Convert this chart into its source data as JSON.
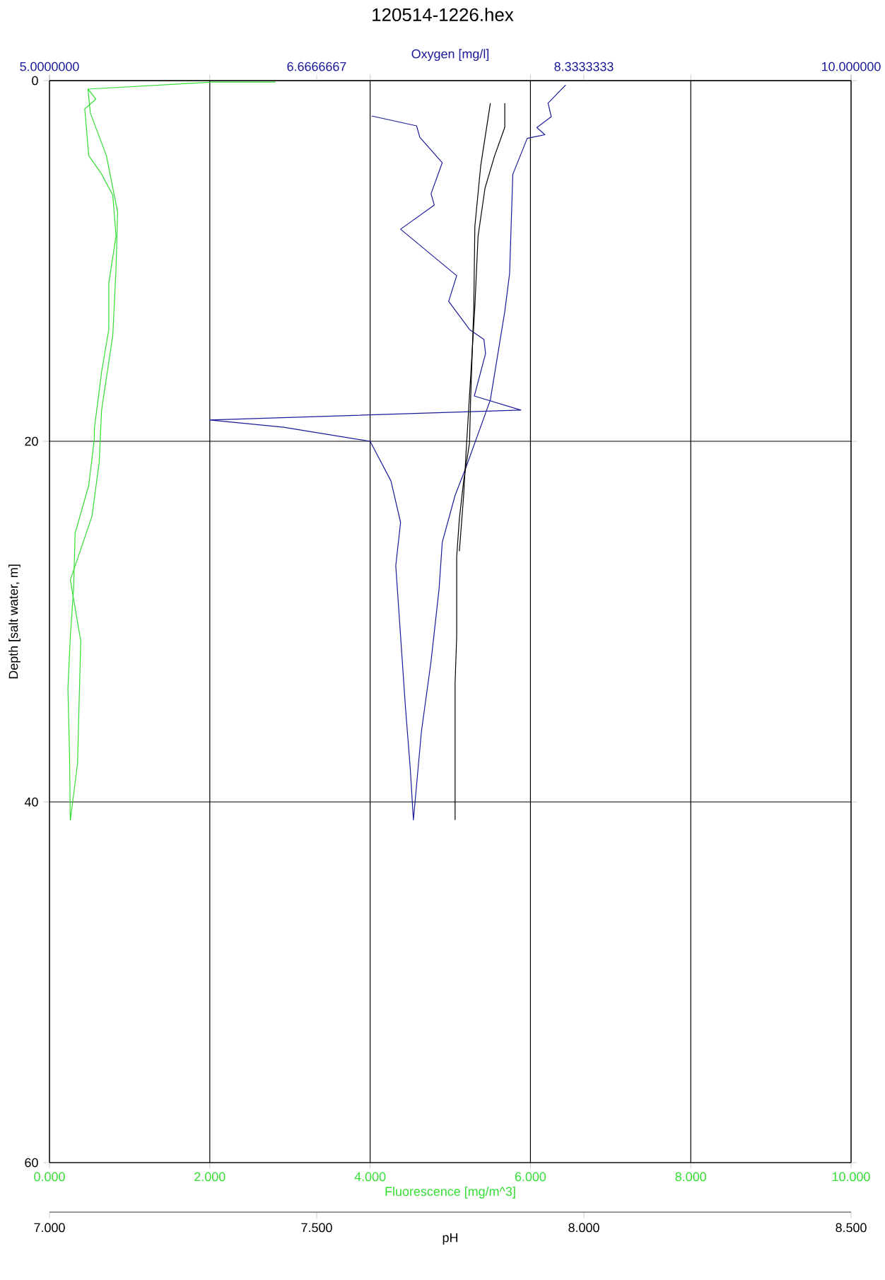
{
  "chart_data": [
    {
      "type": "line",
      "title": "120514-1226.hex",
      "xlabel": "Fluorescence [mg/m^3]",
      "x2label": "Oxygen [mg/l]",
      "ylabel": "Depth [salt water, m]",
      "xlim": [
        0,
        10
      ],
      "xticks": [
        {
          "value": 0,
          "label": "0.000"
        },
        {
          "value": 2,
          "label": "2.000"
        },
        {
          "value": 4,
          "label": "4.000"
        },
        {
          "value": 6,
          "label": "6.000"
        },
        {
          "value": 8,
          "label": "8.000"
        },
        {
          "value": 10,
          "label": "10.000"
        }
      ],
      "x2lim": [
        5,
        10
      ],
      "x2ticks": [
        {
          "value": 5,
          "label": "5.0000000"
        },
        {
          "value": 6.6666667,
          "label": "6.6666667"
        },
        {
          "value": 8.3333333,
          "label": "8.3333333"
        },
        {
          "value": 10,
          "label": "10.000000"
        }
      ],
      "ylim": [
        60,
        0
      ],
      "yticks": [
        0,
        20,
        40,
        60
      ],
      "grid": true,
      "series": [
        {
          "color": "#33dd33",
          "x": [
            0.48,
            0.58,
            0.44,
            0.49,
            0.65,
            0.79,
            0.83,
            0.74,
            0.74,
            0.65,
            0.56,
            0.56,
            0.49,
            0.32,
            0.3,
            0.26,
            0.23,
            0.25,
            0.26
          ],
          "values": [
            0.47,
            1.02,
            1.57,
            4.16,
            5.18,
            6.35,
            8.63,
            11.22,
            13.8,
            16.16,
            19.29,
            19.84,
            22.43,
            25.1,
            28.24,
            30.82,
            33.73,
            37.33,
            41.02
          ]
        },
        {
          "color": "#33dd33",
          "x": [
            0.26,
            0.35,
            0.39,
            0.26,
            0.41,
            0.53,
            0.62,
            0.65,
            0.79,
            0.83,
            0.85,
            0.71,
            0.51,
            0.48,
            2.03,
            2.82
          ],
          "values": [
            41.02,
            37.88,
            31.06,
            27.69,
            25.73,
            24.16,
            21.18,
            18.27,
            14.12,
            10.43,
            7.29,
            4.16,
            1.8,
            0.47,
            0.08,
            0.08
          ]
        },
        {
          "color": "#1a1a9a",
          "axis": "x2",
          "x": [
            7.01,
            7.29,
            7.31,
            7.45,
            7.38,
            7.4,
            7.19,
            7.54,
            7.49,
            7.62,
            7.71,
            7.72,
            7.65,
            7.94,
            6.0,
            6.46,
            7.0,
            7.13,
            7.19,
            7.16,
            7.19,
            7.22,
            7.25,
            7.27,
            7.32,
            7.38,
            7.43,
            7.45,
            7.53,
            7.6,
            7.75,
            7.84,
            7.87,
            7.89,
            7.98,
            8.09,
            8.04,
            8.13,
            8.11,
            8.22
          ],
          "values": [
            1.96,
            2.51,
            3.14,
            4.55,
            6.27,
            6.9,
            8.24,
            10.82,
            12.24,
            13.8,
            14.35,
            15.14,
            17.49,
            18.27,
            18.82,
            19.22,
            20.0,
            22.2,
            24.5,
            26.9,
            30.8,
            34.7,
            38.1,
            41.0,
            36.1,
            32.2,
            28.2,
            25.6,
            23.0,
            21.4,
            17.7,
            12.8,
            10.7,
            5.2,
            3.2,
            3.0,
            2.6,
            2.0,
            1.25,
            0.24
          ]
        }
      ]
    },
    {
      "type": "line",
      "xlabel": "pH",
      "xlim": [
        7,
        8.5
      ],
      "xticks": [
        {
          "value": 7,
          "label": "7.000"
        },
        {
          "value": 7.5,
          "label": "7.500"
        },
        {
          "value": 8,
          "label": "8.000"
        },
        {
          "value": 8.5,
          "label": "8.500"
        }
      ],
      "ylim": [
        60,
        0
      ],
      "tick_labels": "x",
      "series": [
        {
          "color": "#000000",
          "x": [
            7.825,
            7.807,
            7.796,
            7.794,
            7.788,
            7.786,
            7.775,
            7.767,
            7.762,
            7.762,
            7.759,
            7.759
          ],
          "values": [
            1.25,
            4.71,
            8.08,
            12.55,
            17.73,
            20.08,
            22.2,
            24.3,
            26.4,
            30.8,
            33.4,
            41.0
          ]
        },
        {
          "color": "#000000",
          "x": [
            7.852,
            7.852,
            7.833,
            7.815,
            7.802,
            7.796,
            7.788,
            7.78,
            7.775,
            7.767
          ],
          "values": [
            1.25,
            2.59,
            4.16,
            5.96,
            8.63,
            12.55,
            16.47,
            20.39,
            23.0,
            26.1
          ]
        }
      ]
    }
  ]
}
